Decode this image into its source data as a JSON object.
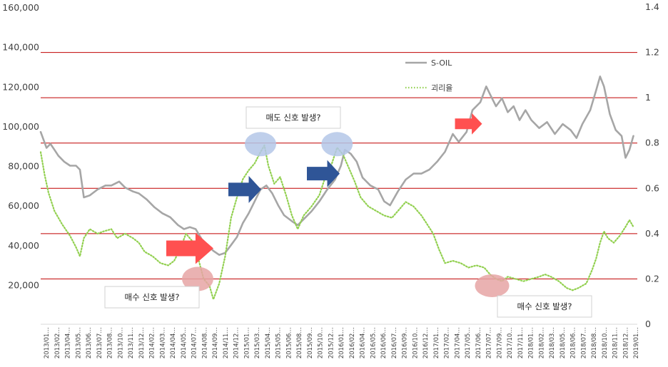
{
  "chart_data": {
    "type": "line",
    "title": "",
    "xlabel": "",
    "ylabel": "",
    "y_left": {
      "ylim": [
        0,
        160000
      ],
      "ticks": [
        20000,
        40000,
        60000,
        80000,
        100000,
        120000,
        140000,
        160000
      ],
      "tick_labels": [
        "20,000",
        "40,000",
        "60,000",
        "80,000",
        "100,000",
        "120,000",
        "140,000",
        "160,000"
      ]
    },
    "y_right": {
      "ylim": [
        0,
        1.4
      ],
      "ticks": [
        0,
        0.2,
        0.4,
        0.6,
        0.8,
        1.0,
        1.2,
        1.4
      ],
      "tick_labels": [
        "0",
        "0.2",
        "0.4",
        "0.6",
        "0.8",
        "1",
        "1.2",
        "1.4"
      ]
    },
    "x_tick_labels": [
      "2013/01",
      "2013/02",
      "2013/04",
      "2013/05",
      "2013/06",
      "2013/07",
      "2013/08",
      "2013/10",
      "2013/11",
      "2013/12",
      "2014/02",
      "2014/03",
      "2014/04",
      "2014/05",
      "2014/07",
      "2014/08",
      "2014/09",
      "2014/11",
      "2014/12",
      "2015/01",
      "2015/03",
      "2015/04",
      "2015/05",
      "2015/06",
      "2015/08",
      "2015/09",
      "2015/10",
      "2015/12",
      "2016/01",
      "2016/02",
      "2016/04",
      "2016/05",
      "2016/06",
      "2016/07",
      "2016/09",
      "2016/10",
      "2016/12",
      "2017/01",
      "2017/02",
      "2017/04",
      "2017/05",
      "2017/06",
      "2017/07",
      "2017/09",
      "2017/10",
      "2017/11",
      "2018/01",
      "2018/02",
      "2018/03",
      "2018/05",
      "2018/06",
      "2018/07",
      "2018/08",
      "2018/10",
      "2018/11",
      "2018/12",
      "2019/01"
    ],
    "x_tick_truncation": "…",
    "ratio_gridlines": [
      0.2,
      0.4,
      0.6,
      0.8,
      1.0,
      1.2
    ],
    "grid_color": "#c00000",
    "legend_placement": "top-center",
    "series": [
      {
        "name": "S-OIL",
        "axis": "left",
        "color": "#a6a6a6",
        "style": "solid",
        "points": [
          [
            2013.0,
            97000
          ],
          [
            2013.03,
            93000
          ],
          [
            2013.06,
            89000
          ],
          [
            2013.1,
            91000
          ],
          [
            2013.14,
            88000
          ],
          [
            2013.18,
            85000
          ],
          [
            2013.24,
            82000
          ],
          [
            2013.3,
            80000
          ],
          [
            2013.36,
            80000
          ],
          [
            2013.4,
            78000
          ],
          [
            2013.44,
            64000
          ],
          [
            2013.5,
            65000
          ],
          [
            2013.58,
            68000
          ],
          [
            2013.66,
            70000
          ],
          [
            2013.72,
            70000
          ],
          [
            2013.8,
            72000
          ],
          [
            2013.86,
            69000
          ],
          [
            2013.94,
            67000
          ],
          [
            2014.0,
            66000
          ],
          [
            2014.08,
            63000
          ],
          [
            2014.16,
            59000
          ],
          [
            2014.24,
            56000
          ],
          [
            2014.32,
            54000
          ],
          [
            2014.4,
            50000
          ],
          [
            2014.46,
            48000
          ],
          [
            2014.52,
            49000
          ],
          [
            2014.58,
            48000
          ],
          [
            2014.64,
            43000
          ],
          [
            2014.7,
            40000
          ],
          [
            2014.76,
            37000
          ],
          [
            2014.82,
            35000
          ],
          [
            2014.88,
            36000
          ],
          [
            2014.94,
            40000
          ],
          [
            2015.0,
            44000
          ],
          [
            2015.06,
            51000
          ],
          [
            2015.12,
            56000
          ],
          [
            2015.18,
            62000
          ],
          [
            2015.24,
            68000
          ],
          [
            2015.3,
            70000
          ],
          [
            2015.36,
            66000
          ],
          [
            2015.42,
            60000
          ],
          [
            2015.48,
            55000
          ],
          [
            2015.56,
            52000
          ],
          [
            2015.62,
            50000
          ],
          [
            2015.7,
            54000
          ],
          [
            2015.76,
            57000
          ],
          [
            2015.84,
            62000
          ],
          [
            2015.92,
            68000
          ],
          [
            2016.0,
            73000
          ],
          [
            2016.06,
            80000
          ],
          [
            2016.1,
            88000
          ],
          [
            2016.16,
            86000
          ],
          [
            2016.22,
            82000
          ],
          [
            2016.28,
            74000
          ],
          [
            2016.36,
            70000
          ],
          [
            2016.44,
            68000
          ],
          [
            2016.5,
            62000
          ],
          [
            2016.56,
            60000
          ],
          [
            2016.64,
            67000
          ],
          [
            2016.72,
            73000
          ],
          [
            2016.8,
            76000
          ],
          [
            2016.88,
            76000
          ],
          [
            2016.96,
            78000
          ],
          [
            2017.04,
            82000
          ],
          [
            2017.12,
            87000
          ],
          [
            2017.2,
            96000
          ],
          [
            2017.26,
            92000
          ],
          [
            2017.34,
            97000
          ],
          [
            2017.4,
            108000
          ],
          [
            2017.48,
            112000
          ],
          [
            2017.54,
            120000
          ],
          [
            2017.58,
            116000
          ],
          [
            2017.64,
            110000
          ],
          [
            2017.7,
            114000
          ],
          [
            2017.76,
            107000
          ],
          [
            2017.82,
            110000
          ],
          [
            2017.88,
            103000
          ],
          [
            2017.94,
            108000
          ],
          [
            2018.0,
            103000
          ],
          [
            2018.08,
            99000
          ],
          [
            2018.16,
            102000
          ],
          [
            2018.24,
            96000
          ],
          [
            2018.32,
            101000
          ],
          [
            2018.4,
            98000
          ],
          [
            2018.46,
            94000
          ],
          [
            2018.52,
            101000
          ],
          [
            2018.6,
            108000
          ],
          [
            2018.66,
            118000
          ],
          [
            2018.7,
            125000
          ],
          [
            2018.74,
            120000
          ],
          [
            2018.8,
            106000
          ],
          [
            2018.86,
            98000
          ],
          [
            2018.92,
            95000
          ],
          [
            2018.96,
            84000
          ],
          [
            2019.0,
            88000
          ],
          [
            2019.04,
            95000
          ]
        ]
      },
      {
        "name": "괴리율",
        "axis": "right",
        "color": "#92d050",
        "style": "dotted",
        "points": [
          [
            2013.0,
            0.76
          ],
          [
            2013.04,
            0.66
          ],
          [
            2013.08,
            0.58
          ],
          [
            2013.14,
            0.5
          ],
          [
            2013.22,
            0.44
          ],
          [
            2013.3,
            0.39
          ],
          [
            2013.36,
            0.34
          ],
          [
            2013.4,
            0.3
          ],
          [
            2013.44,
            0.38
          ],
          [
            2013.5,
            0.42
          ],
          [
            2013.58,
            0.4
          ],
          [
            2013.64,
            0.41
          ],
          [
            2013.72,
            0.42
          ],
          [
            2013.78,
            0.38
          ],
          [
            2013.86,
            0.4
          ],
          [
            2013.94,
            0.38
          ],
          [
            2014.0,
            0.36
          ],
          [
            2014.06,
            0.32
          ],
          [
            2014.14,
            0.3
          ],
          [
            2014.22,
            0.27
          ],
          [
            2014.3,
            0.26
          ],
          [
            2014.36,
            0.28
          ],
          [
            2014.42,
            0.33
          ],
          [
            2014.48,
            0.4
          ],
          [
            2014.54,
            0.37
          ],
          [
            2014.6,
            0.3
          ],
          [
            2014.66,
            0.2
          ],
          [
            2014.72,
            0.17
          ],
          [
            2014.76,
            0.11
          ],
          [
            2014.82,
            0.18
          ],
          [
            2014.88,
            0.3
          ],
          [
            2014.94,
            0.47
          ],
          [
            2015.0,
            0.56
          ],
          [
            2015.06,
            0.64
          ],
          [
            2015.12,
            0.68
          ],
          [
            2015.18,
            0.71
          ],
          [
            2015.24,
            0.76
          ],
          [
            2015.28,
            0.79
          ],
          [
            2015.32,
            0.7
          ],
          [
            2015.38,
            0.62
          ],
          [
            2015.44,
            0.65
          ],
          [
            2015.5,
            0.57
          ],
          [
            2015.56,
            0.48
          ],
          [
            2015.62,
            0.42
          ],
          [
            2015.68,
            0.48
          ],
          [
            2015.76,
            0.52
          ],
          [
            2015.84,
            0.57
          ],
          [
            2015.9,
            0.65
          ],
          [
            2015.96,
            0.7
          ],
          [
            2016.02,
            0.78
          ],
          [
            2016.08,
            0.75
          ],
          [
            2016.14,
            0.69
          ],
          [
            2016.2,
            0.63
          ],
          [
            2016.26,
            0.56
          ],
          [
            2016.34,
            0.52
          ],
          [
            2016.42,
            0.5
          ],
          [
            2016.5,
            0.48
          ],
          [
            2016.58,
            0.47
          ],
          [
            2016.64,
            0.5
          ],
          [
            2016.72,
            0.54
          ],
          [
            2016.8,
            0.52
          ],
          [
            2016.88,
            0.48
          ],
          [
            2016.94,
            0.44
          ],
          [
            2017.0,
            0.4
          ],
          [
            2017.06,
            0.33
          ],
          [
            2017.12,
            0.27
          ],
          [
            2017.2,
            0.28
          ],
          [
            2017.28,
            0.27
          ],
          [
            2017.36,
            0.25
          ],
          [
            2017.44,
            0.26
          ],
          [
            2017.52,
            0.25
          ],
          [
            2017.58,
            0.22
          ],
          [
            2017.64,
            0.2
          ],
          [
            2017.7,
            0.19
          ],
          [
            2017.76,
            0.21
          ],
          [
            2017.84,
            0.2
          ],
          [
            2017.92,
            0.19
          ],
          [
            2018.0,
            0.2
          ],
          [
            2018.08,
            0.21
          ],
          [
            2018.14,
            0.22
          ],
          [
            2018.2,
            0.21
          ],
          [
            2018.28,
            0.19
          ],
          [
            2018.36,
            0.16
          ],
          [
            2018.42,
            0.15
          ],
          [
            2018.48,
            0.16
          ],
          [
            2018.56,
            0.18
          ],
          [
            2018.62,
            0.24
          ],
          [
            2018.66,
            0.29
          ],
          [
            2018.7,
            0.36
          ],
          [
            2018.74,
            0.41
          ],
          [
            2018.78,
            0.38
          ],
          [
            2018.84,
            0.36
          ],
          [
            2018.9,
            0.39
          ],
          [
            2018.96,
            0.43
          ],
          [
            2019.0,
            0.46
          ],
          [
            2019.04,
            0.43
          ]
        ]
      }
    ],
    "annotations": [
      {
        "id": "sell-1",
        "text": "매도 신호 발생?",
        "kind": "sell-circle",
        "color": "#b4c7e7",
        "at": [
          2015.24,
          0.795
        ]
      },
      {
        "id": "sell-2",
        "text": "",
        "kind": "sell-circle",
        "color": "#b4c7e7",
        "at": [
          2016.02,
          0.795
        ]
      },
      {
        "id": "buy-1",
        "text": "매수 신호 발생?",
        "kind": "buy-circle",
        "color": "#e6a4a4",
        "at": [
          2014.6,
          0.2
        ]
      },
      {
        "id": "buy-2",
        "text": "매수 신호 발생?",
        "kind": "buy-circle",
        "color": "#e6a4a4",
        "at": [
          2017.6,
          0.17
        ]
      }
    ],
    "arrows": [
      {
        "id": "red-arrow-1",
        "color": "#ff5050",
        "at": [
          2014.52,
          0.335
        ]
      },
      {
        "id": "blue-arrow-1",
        "color": "#2f5597",
        "at": [
          2015.08,
          0.595
        ]
      },
      {
        "id": "blue-arrow-2",
        "color": "#2f5597",
        "at": [
          2015.88,
          0.665
        ]
      },
      {
        "id": "red-arrow-2",
        "color": "#ff5050",
        "at": [
          2017.36,
          0.885
        ]
      }
    ]
  }
}
